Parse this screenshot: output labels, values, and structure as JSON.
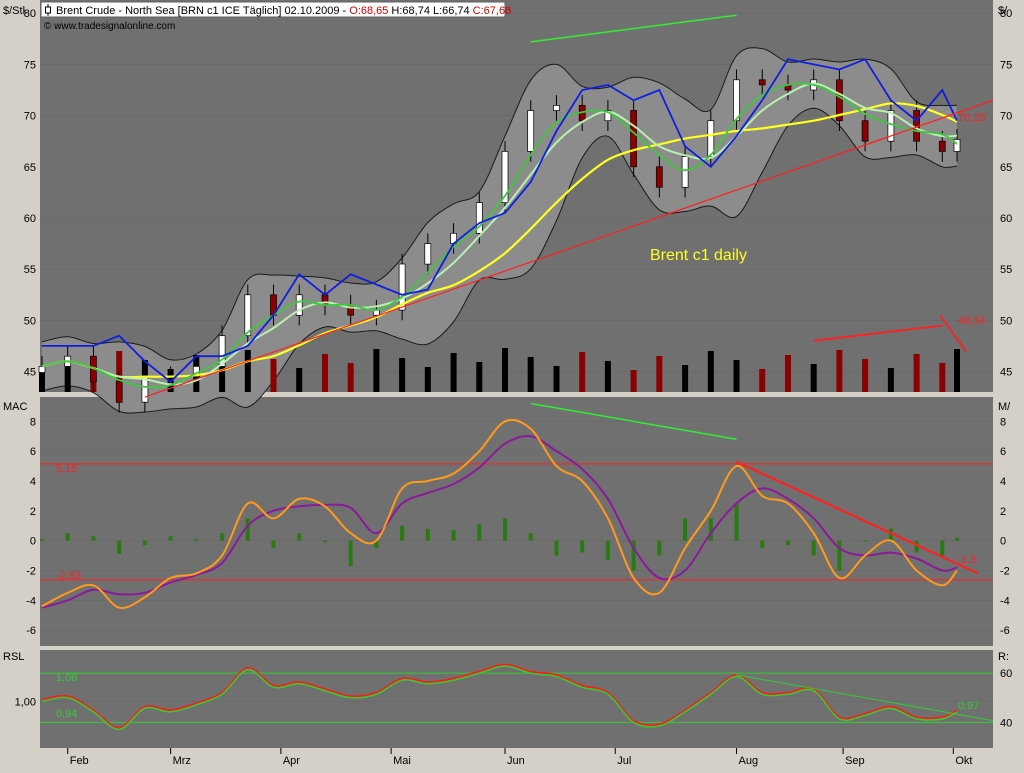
{
  "header": {
    "instrument": "Brent Crude - North Sea [BRN c1 ICE  Täglich] 02.10.2009 - ",
    "open": "O:68,65",
    "high": "H:68,74",
    "low": "L:66,74",
    "close": "C:67,68",
    "watermark": "© www.tradesignalonline.com"
  },
  "months": [
    "Feb",
    "Mrz",
    "Apr",
    "Mai",
    "Jun",
    "Jul",
    "Aug",
    "Sep",
    "Okt"
  ],
  "price_panel": {
    "axis_label_left": "$/Stl",
    "axis_label_right": "$/",
    "ticks": [
      "80",
      "75",
      "70",
      "65",
      "60",
      "55",
      "50",
      "45"
    ],
    "title_text": "Brent c1 daily",
    "trend_value": "70,25",
    "volume_value": "48,54"
  },
  "macd_panel": {
    "axis_label_left": "MAC",
    "axis_label_right": "M/",
    "ticks": [
      "8",
      "6",
      "4",
      "2",
      "0",
      "-2",
      "-4",
      "-6"
    ],
    "upper_level": "5,15",
    "lower_level": "-2,63",
    "trend_value": "-1,5"
  },
  "rsl_panel": {
    "axis_label_left": "RSL",
    "axis_label_right": "R:",
    "ticks_left": [
      "1,00"
    ],
    "ticks_right": [
      "60",
      "40"
    ],
    "upper_level": "1,08",
    "lower_level": "0,94",
    "trend_value": "0,97"
  },
  "colors": {
    "panel_bg": "#707070",
    "band_fill": "#8c8c8c",
    "candle_up": "#ffffff",
    "candle_down": "#8b0000",
    "volume_up": "#000000",
    "volume_down": "#8b0000",
    "ma_fast": "#3ec83e",
    "ma_mid": "#b8f0b0",
    "ma_slow": "#ffff22",
    "envelope": "#0f1fe0",
    "macd": "#ff9a1a",
    "signal": "#8a1a9a",
    "histogram": "#2a7a12",
    "level_line": "#ff2020",
    "green_trend": "#30ee30",
    "rsl_red": "#ff1a1a",
    "rsl_green": "#33cc33"
  },
  "chart_data": {
    "type": "line",
    "frequency": "daily",
    "x": [
      "2009-01-26",
      "2009-02-02",
      "2009-02-09",
      "2009-02-16",
      "2009-02-23",
      "2009-03-02",
      "2009-03-09",
      "2009-03-16",
      "2009-03-23",
      "2009-03-30",
      "2009-04-06",
      "2009-04-13",
      "2009-04-20",
      "2009-04-27",
      "2009-05-04",
      "2009-05-11",
      "2009-05-18",
      "2009-05-25",
      "2009-06-01",
      "2009-06-08",
      "2009-06-15",
      "2009-06-22",
      "2009-06-29",
      "2009-07-06",
      "2009-07-13",
      "2009-07-20",
      "2009-07-27",
      "2009-08-03",
      "2009-08-10",
      "2009-08-17",
      "2009-08-24",
      "2009-08-31",
      "2009-09-07",
      "2009-09-14",
      "2009-09-21",
      "2009-09-28",
      "2009-10-02"
    ],
    "series": [
      {
        "values": [
          45.5,
          46.5,
          44.0,
          42.0,
          44.5,
          44.5,
          45.5,
          48.5,
          52.5,
          50.5,
          52.5,
          51.5,
          50.5,
          51.0,
          55.5,
          57.5,
          58.5,
          61.5,
          66.5,
          70.5,
          71.0,
          69.5,
          70.5,
          65.0,
          63.0,
          66.0,
          69.5,
          73.5,
          73.0,
          72.5,
          73.5,
          69.5,
          67.5,
          70.5,
          67.5,
          66.5,
          67.68
        ]
      }
    ],
    "ylim": [
      43,
      81
    ],
    "macd": {
      "macd": [
        -4.4,
        -3.5,
        -3.0,
        -4.5,
        -3.8,
        -2.5,
        -2.2,
        -1.0,
        2.5,
        1.5,
        2.8,
        2.3,
        0.5,
        0.0,
        3.5,
        4.0,
        4.5,
        6.0,
        8.0,
        7.5,
        5.0,
        4.0,
        1.5,
        -2.5,
        -3.5,
        -0.5,
        2.0,
        5.0,
        3.0,
        2.5,
        0.5,
        -2.5,
        -1.0,
        0.0,
        -2.0,
        -3.0,
        -2.0
      ],
      "signal": [
        -4.5,
        -4.0,
        -3.3,
        -3.6,
        -3.5,
        -2.8,
        -2.3,
        -1.5,
        1.0,
        2.0,
        2.3,
        2.4,
        2.2,
        0.5,
        2.5,
        3.2,
        3.8,
        4.9,
        6.5,
        7.0,
        6.0,
        4.8,
        2.8,
        -0.5,
        -2.5,
        -2.0,
        0.5,
        2.5,
        3.5,
        2.8,
        1.5,
        -0.5,
        -1.0,
        -0.8,
        -1.2,
        -2.0,
        -1.8
      ],
      "histogram": [
        0.1,
        0.5,
        0.3,
        -0.9,
        -0.3,
        0.3,
        0.1,
        0.5,
        1.5,
        -0.5,
        0.5,
        -0.1,
        -1.7,
        -0.5,
        1.0,
        0.8,
        0.7,
        1.1,
        1.5,
        0.5,
        -1.0,
        -0.8,
        -1.3,
        -2.0,
        -1.0,
        1.5,
        1.5,
        2.5,
        -0.5,
        -0.3,
        -1.0,
        -2.0,
        0.0,
        0.8,
        -0.8,
        -1.0,
        0.2
      ],
      "levels": [
        5.15,
        -2.63
      ],
      "ylim": [
        -7,
        9.5
      ]
    },
    "rsl": {
      "values": [
        1.0,
        1.01,
        0.97,
        0.92,
        0.98,
        0.97,
        0.99,
        1.02,
        1.09,
        1.04,
        1.05,
        1.03,
        1.01,
        1.02,
        1.06,
        1.05,
        1.06,
        1.08,
        1.1,
        1.08,
        1.07,
        1.04,
        1.02,
        0.94,
        0.93,
        0.97,
        1.02,
        1.07,
        1.02,
        1.02,
        1.03,
        0.95,
        0.96,
        0.98,
        0.95,
        0.95,
        0.97
      ],
      "levels": [
        1.08,
        0.94
      ],
      "ylim": [
        0.87,
        1.14
      ]
    }
  }
}
